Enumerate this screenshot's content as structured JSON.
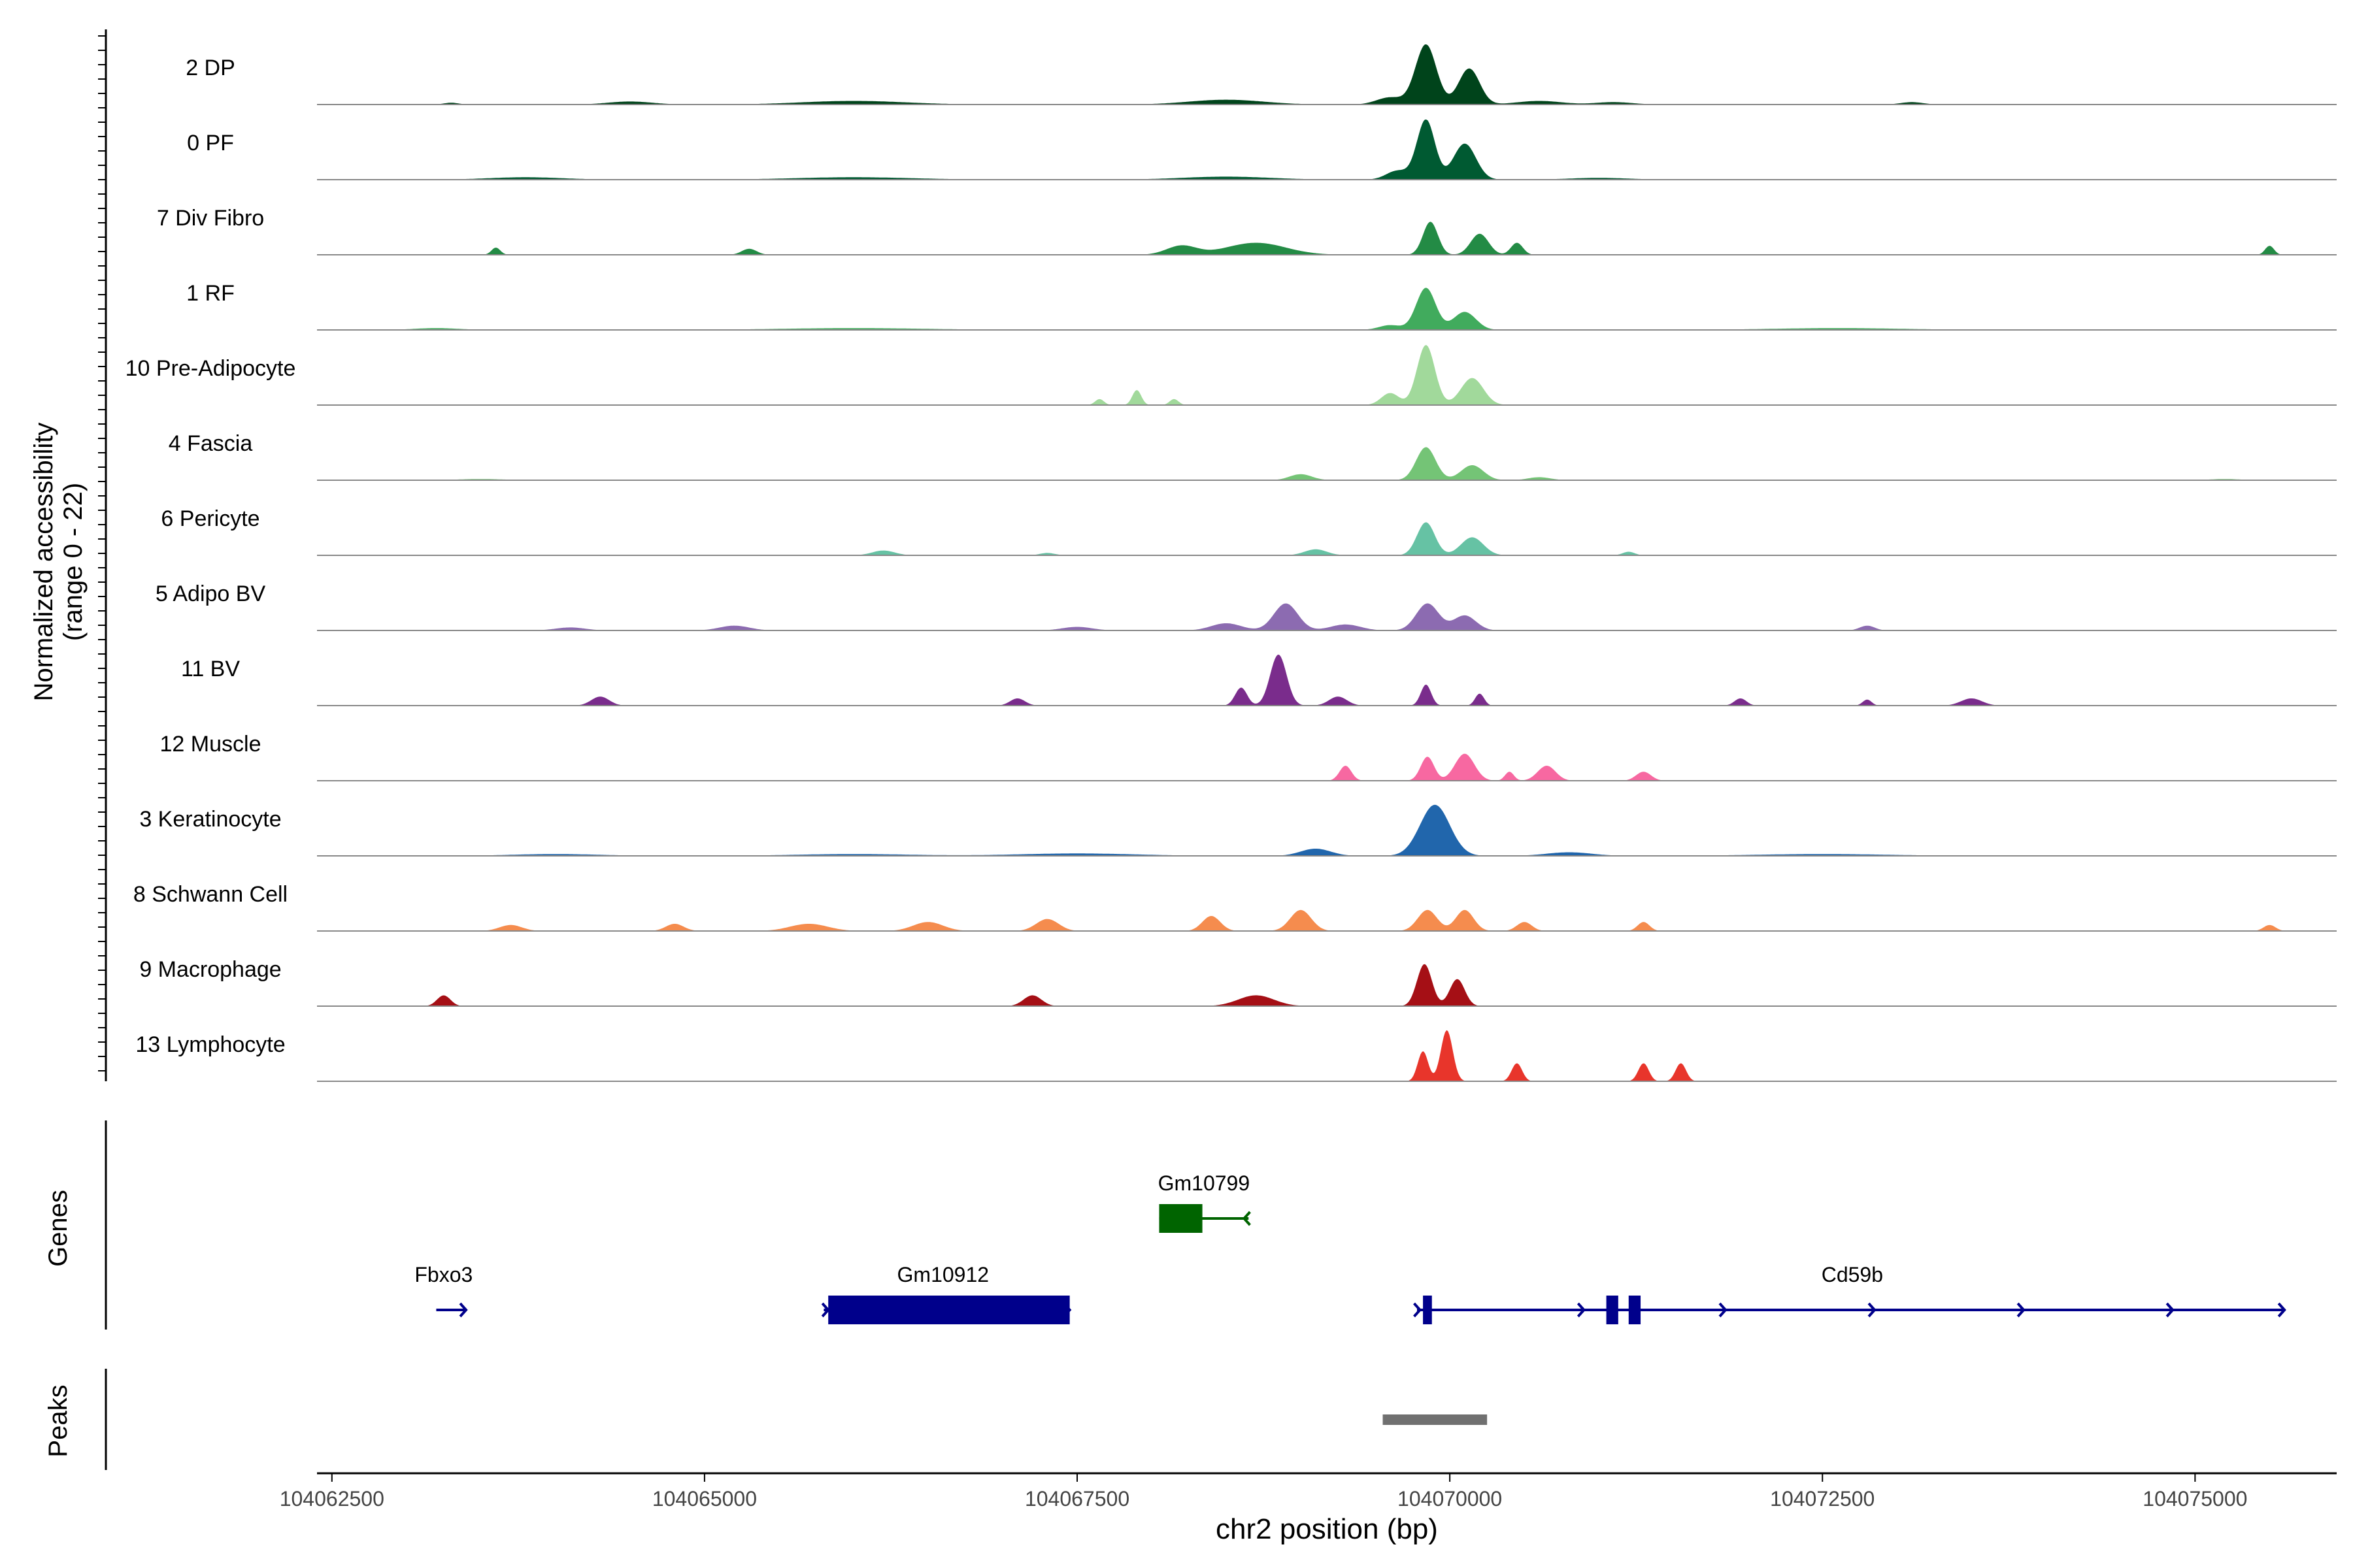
{
  "chart_data": {
    "type": "area",
    "ylabel_line1": "Normalized accessibility",
    "ylabel_line2": "(range 0 - 22)",
    "xlabel": "chr2 position (bp)",
    "xlim": [
      104062400,
      104075950
    ],
    "xticks": [
      104062500,
      104065000,
      104067500,
      104070000,
      104072500,
      104075000
    ],
    "xtick_labels": [
      "104062500",
      "104065000",
      "104067500",
      "104070000",
      "104072500",
      "104075000"
    ],
    "genes_label": "Genes",
    "peaks_label": "Peaks",
    "tracks": [
      {
        "name": "2 DP",
        "color": "#00441b",
        "peaks": [
          [
            104069840,
            1.0,
            140
          ],
          [
            104070130,
            0.6,
            140
          ],
          [
            104069600,
            0.12,
            180
          ],
          [
            104068500,
            0.08,
            500
          ],
          [
            104066000,
            0.06,
            700
          ],
          [
            104064500,
            0.05,
            300
          ],
          [
            104070600,
            0.06,
            300
          ],
          [
            104071100,
            0.04,
            250
          ],
          [
            104073100,
            0.04,
            150
          ],
          [
            104063300,
            0.03,
            100
          ]
        ]
      },
      {
        "name": "0 PF",
        "color": "#005a32",
        "peaks": [
          [
            104069840,
            1.0,
            120
          ],
          [
            104070100,
            0.6,
            150
          ],
          [
            104069650,
            0.15,
            150
          ],
          [
            104068500,
            0.05,
            600
          ],
          [
            104066000,
            0.04,
            800
          ],
          [
            104063800,
            0.04,
            500
          ],
          [
            104071000,
            0.03,
            400
          ]
        ]
      },
      {
        "name": "7 Div Fibro",
        "color": "#238b45",
        "peaks": [
          [
            104069870,
            0.55,
            100
          ],
          [
            104070200,
            0.35,
            120
          ],
          [
            104068700,
            0.2,
            400
          ],
          [
            104068200,
            0.15,
            200
          ],
          [
            104070450,
            0.2,
            80
          ],
          [
            104063600,
            0.12,
            60
          ],
          [
            104065300,
            0.1,
            100
          ],
          [
            104075500,
            0.15,
            60
          ]
        ]
      },
      {
        "name": "1 RF",
        "color": "#41ab5d",
        "peaks": [
          [
            104069840,
            0.7,
            130
          ],
          [
            104070100,
            0.3,
            150
          ],
          [
            104069600,
            0.08,
            150
          ],
          [
            104066000,
            0.03,
            1000
          ],
          [
            104072600,
            0.03,
            900
          ],
          [
            104063200,
            0.03,
            300
          ]
        ]
      },
      {
        "name": "10 Pre-Adipocyte",
        "color": "#a1d99b",
        "peaks": [
          [
            104069840,
            1.0,
            120
          ],
          [
            104070150,
            0.45,
            150
          ],
          [
            104069600,
            0.2,
            120
          ],
          [
            104067900,
            0.25,
            60
          ],
          [
            104067650,
            0.1,
            60
          ],
          [
            104068150,
            0.1,
            60
          ]
        ]
      },
      {
        "name": "4 Fascia",
        "color": "#74c476",
        "peaks": [
          [
            104069840,
            0.55,
            130
          ],
          [
            104070150,
            0.25,
            150
          ],
          [
            104069000,
            0.1,
            150
          ],
          [
            104070600,
            0.05,
            150
          ],
          [
            104063500,
            0.02,
            300
          ],
          [
            104075200,
            0.02,
            200
          ]
        ]
      },
      {
        "name": "6 Pericyte",
        "color": "#66c2a4",
        "peaks": [
          [
            104069840,
            0.55,
            120
          ],
          [
            104070150,
            0.3,
            150
          ],
          [
            104069100,
            0.1,
            150
          ],
          [
            104066200,
            0.08,
            150
          ],
          [
            104071200,
            0.06,
            80
          ],
          [
            104067300,
            0.04,
            100
          ]
        ]
      },
      {
        "name": "5 Adipo BV",
        "color": "#8c6bb1",
        "peaks": [
          [
            104068900,
            0.45,
            160
          ],
          [
            104069850,
            0.45,
            150
          ],
          [
            104070100,
            0.25,
            150
          ],
          [
            104068500,
            0.12,
            200
          ],
          [
            104069300,
            0.1,
            200
          ],
          [
            104065200,
            0.08,
            200
          ],
          [
            104064100,
            0.05,
            200
          ],
          [
            104072800,
            0.08,
            100
          ],
          [
            104067500,
            0.06,
            200
          ]
        ]
      },
      {
        "name": "11 BV",
        "color": "#7a2c8c",
        "peaks": [
          [
            104068850,
            0.85,
            110
          ],
          [
            104068600,
            0.3,
            80
          ],
          [
            104069250,
            0.15,
            120
          ],
          [
            104069840,
            0.35,
            70
          ],
          [
            104070200,
            0.2,
            60
          ],
          [
            104064300,
            0.15,
            120
          ],
          [
            104067100,
            0.12,
            100
          ],
          [
            104071950,
            0.12,
            80
          ],
          [
            104072800,
            0.1,
            60
          ],
          [
            104073500,
            0.12,
            140
          ]
        ]
      },
      {
        "name": "12 Muscle",
        "color": "#f768a1",
        "peaks": [
          [
            104069850,
            0.4,
            90
          ],
          [
            104070100,
            0.45,
            130
          ],
          [
            104069300,
            0.25,
            80
          ],
          [
            104070650,
            0.25,
            120
          ],
          [
            104071300,
            0.15,
            100
          ],
          [
            104070400,
            0.15,
            60
          ]
        ]
      },
      {
        "name": "3 Keratinocyte",
        "color": "#2166ac",
        "peaks": [
          [
            104069900,
            0.85,
            200
          ],
          [
            104069100,
            0.12,
            200
          ],
          [
            104070800,
            0.06,
            300
          ],
          [
            104067500,
            0.04,
            800
          ],
          [
            104066000,
            0.03,
            800
          ],
          [
            104072500,
            0.03,
            900
          ],
          [
            104064000,
            0.03,
            600
          ]
        ]
      },
      {
        "name": "8 Schwann Cell",
        "color": "#f58c4e",
        "peaks": [
          [
            104069850,
            0.35,
            130
          ],
          [
            104070100,
            0.35,
            120
          ],
          [
            104069000,
            0.35,
            140
          ],
          [
            104068400,
            0.25,
            120
          ],
          [
            104067300,
            0.2,
            150
          ],
          [
            104066500,
            0.15,
            200
          ],
          [
            104065700,
            0.12,
            250
          ],
          [
            104064800,
            0.12,
            120
          ],
          [
            104063700,
            0.1,
            150
          ],
          [
            104070500,
            0.15,
            100
          ],
          [
            104071300,
            0.15,
            80
          ],
          [
            104075500,
            0.1,
            80
          ]
        ]
      },
      {
        "name": "9 Macrophage",
        "color": "#a50f15",
        "peaks": [
          [
            104069830,
            0.7,
            100
          ],
          [
            104070050,
            0.45,
            100
          ],
          [
            104068700,
            0.18,
            240
          ],
          [
            104067200,
            0.18,
            120
          ],
          [
            104063250,
            0.18,
            90
          ]
        ]
      },
      {
        "name": "13 Lymphocyte",
        "color": "#e8352b",
        "peaks": [
          [
            104069980,
            0.85,
            80
          ],
          [
            104069820,
            0.5,
            70
          ],
          [
            104070450,
            0.3,
            70
          ],
          [
            104071300,
            0.3,
            70
          ],
          [
            104071550,
            0.3,
            70
          ]
        ]
      }
    ],
    "genes": [
      {
        "name": "Gm10799",
        "color": "#006400",
        "row": 1,
        "start": 104068050,
        "end": 104068650,
        "label_pos": 104068350,
        "arrow": "left",
        "exons": [
          [
            104068050,
            104068340
          ]
        ],
        "ticks": [
          104068620
        ]
      },
      {
        "name": "Fbxo3",
        "color": "#00008b",
        "row": 2,
        "start": 104063200,
        "end": 104063400,
        "label_pos": 104063250,
        "arrow": "right",
        "exons": [],
        "ticks": [
          104063400
        ]
      },
      {
        "name": "Gm10912",
        "color": "#00008b",
        "row": 2,
        "start": 104065800,
        "end": 104067450,
        "label_pos": 104066600,
        "arrow": "right",
        "exons": [
          [
            104065830,
            104067450
          ]
        ],
        "ticks": [
          104065830,
          104067450
        ]
      },
      {
        "name": "Cd59b",
        "color": "#00008b",
        "row": 2,
        "start": 104069780,
        "end": 104075600,
        "label_pos": 104072700,
        "arrow": "right",
        "exons": [
          [
            104069820,
            104069880
          ],
          [
            104071050,
            104071130
          ],
          [
            104071200,
            104071280
          ]
        ],
        "ticks": [
          104069800,
          104070900,
          104071850,
          104072850,
          104073850,
          104074850,
          104075600
        ]
      }
    ],
    "peak_regions": [
      [
        104069550,
        104070250
      ]
    ]
  }
}
